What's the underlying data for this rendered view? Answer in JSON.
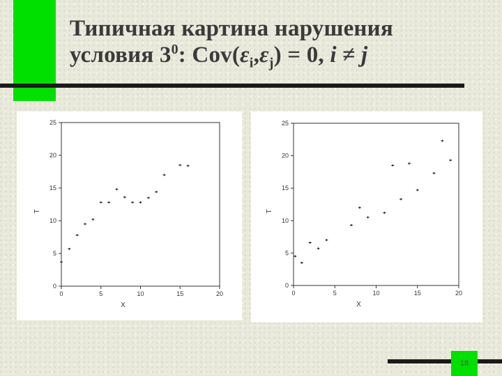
{
  "slide": {
    "title_line1": "Типичная картина нарушения",
    "title_prefix": "условия 3",
    "title_sup": "0",
    "title_cov": ": Cov(",
    "eps": "ε",
    "sub_i": "i",
    "comma": ",",
    "sub_j": "j",
    "title_tail": ") = 0, ",
    "i_var": "i",
    "neq": " ≠ ",
    "j_var": "j",
    "page_number": "18",
    "accent_color": "#00e000"
  },
  "chart_data": [
    {
      "type": "scatter",
      "xlabel": "X",
      "ylabel": "T",
      "xlim": [
        0,
        20
      ],
      "ylim": [
        0,
        25
      ],
      "xticks": [
        "0",
        "5",
        "10",
        "15",
        "20"
      ],
      "yticks": [
        "0",
        "5",
        "10",
        "15",
        "20",
        "25"
      ],
      "points": [
        {
          "x": 0,
          "y": 3.7
        },
        {
          "x": 1,
          "y": 5.7
        },
        {
          "x": 2,
          "y": 7.8
        },
        {
          "x": 3,
          "y": 9.5
        },
        {
          "x": 4,
          "y": 10.2
        },
        {
          "x": 5,
          "y": 12.8
        },
        {
          "x": 6,
          "y": 12.8
        },
        {
          "x": 7,
          "y": 14.8
        },
        {
          "x": 8,
          "y": 13.6
        },
        {
          "x": 9,
          "y": 12.8
        },
        {
          "x": 10,
          "y": 12.8
        },
        {
          "x": 11,
          "y": 13.5
        },
        {
          "x": 12,
          "y": 14.4
        },
        {
          "x": 13,
          "y": 17.0
        },
        {
          "x": 15,
          "y": 18.5
        },
        {
          "x": 16,
          "y": 18.4
        }
      ]
    },
    {
      "type": "scatter",
      "xlabel": "X",
      "ylabel": "T",
      "xlim": [
        0,
        20
      ],
      "ylim": [
        0,
        25
      ],
      "xticks": [
        "0",
        "5",
        "10",
        "15",
        "20"
      ],
      "yticks": [
        "0",
        "5",
        "10",
        "15",
        "20",
        "25"
      ],
      "points": [
        {
          "x": 0.2,
          "y": 4.5
        },
        {
          "x": 1,
          "y": 3.5
        },
        {
          "x": 2,
          "y": 6.6
        },
        {
          "x": 3,
          "y": 5.7
        },
        {
          "x": 4,
          "y": 7.0
        },
        {
          "x": 7,
          "y": 9.3
        },
        {
          "x": 8,
          "y": 12.0
        },
        {
          "x": 9,
          "y": 10.5
        },
        {
          "x": 11,
          "y": 11.2
        },
        {
          "x": 12,
          "y": 18.5
        },
        {
          "x": 13,
          "y": 13.3
        },
        {
          "x": 14,
          "y": 18.8
        },
        {
          "x": 15,
          "y": 14.7
        },
        {
          "x": 17,
          "y": 17.3
        },
        {
          "x": 18,
          "y": 22.3
        },
        {
          "x": 19,
          "y": 19.3
        }
      ]
    }
  ]
}
